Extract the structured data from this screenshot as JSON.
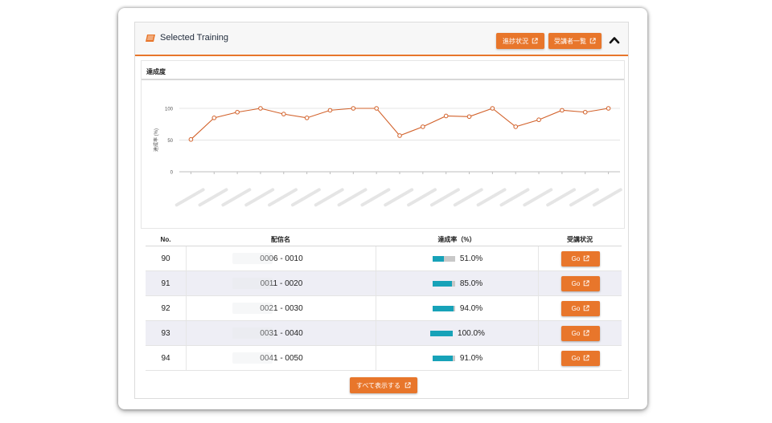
{
  "header": {
    "title": "Selected Training",
    "progress_button": "進捗状況",
    "attendees_button": "受講者一覧"
  },
  "chart_panel_title": "達成度",
  "chart_data": {
    "type": "line",
    "ylabel": "達成率 (%)",
    "ylim": [
      0,
      100
    ],
    "yticks": [
      "0",
      "50",
      "100"
    ],
    "grid": true,
    "legend": "bottom",
    "color": "#d2612a",
    "series": [
      {
        "name": "達成率 (%)",
        "values": [
          51,
          85,
          94,
          100,
          91,
          85,
          97,
          100,
          100,
          57,
          71,
          88,
          87,
          100,
          71,
          82,
          97,
          94,
          100
        ]
      }
    ]
  },
  "table": {
    "headers": [
      "No.",
      "配信名",
      "達成率（%）",
      "受講状況"
    ],
    "rows": [
      {
        "no": "90",
        "name": "0006 - 0010",
        "rate": 0.51,
        "rate_label": "51.0%",
        "action": "Go"
      },
      {
        "no": "91",
        "name": "0011 - 0020",
        "rate": 0.85,
        "rate_label": "85.0%",
        "action": "Go"
      },
      {
        "no": "92",
        "name": "0021 - 0030",
        "rate": 0.94,
        "rate_label": "94.0%",
        "action": "Go"
      },
      {
        "no": "93",
        "name": "0031 - 0040",
        "rate": 1.0,
        "rate_label": "100.0%",
        "action": "Go"
      },
      {
        "no": "94",
        "name": "0041 - 0050",
        "rate": 0.91,
        "rate_label": "91.0%",
        "action": "Go"
      }
    ]
  },
  "show_all_button": "すべて表示する"
}
